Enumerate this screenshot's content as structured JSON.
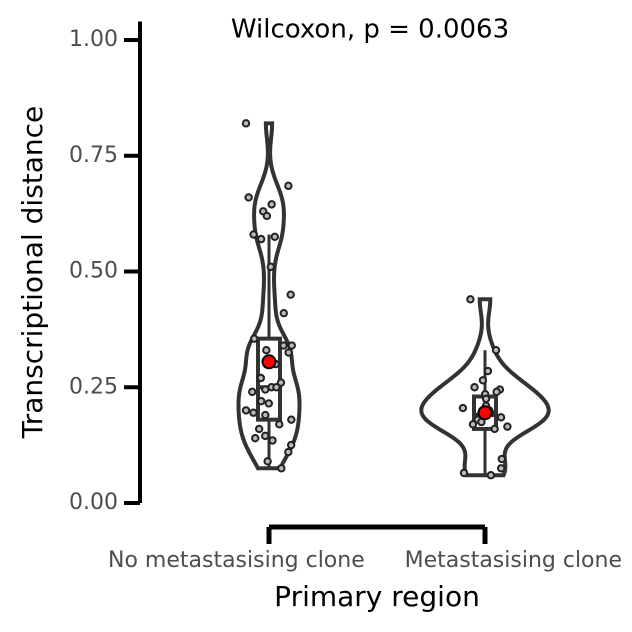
{
  "chart_data": {
    "type": "violin",
    "annotation": "Wilcoxon, p = 0.0063",
    "x_label": "Primary region",
    "y_label": "Transcriptional distance",
    "categories": [
      "No metastasising clone",
      "Metastasising clone"
    ],
    "ylim": [
      0,
      1.04
    ],
    "yticks": [
      {
        "value": 0,
        "label": "0.00"
      },
      {
        "value": 0.25,
        "label": "0.25"
      },
      {
        "value": 0.5,
        "label": "0.50"
      },
      {
        "value": 0.75,
        "label": "0.75"
      },
      {
        "value": 1,
        "label": "1.00"
      }
    ],
    "point_color": "#222222",
    "mean_color": "#ff0000",
    "groups": [
      {
        "values": [
          0.82,
          0.685,
          0.66,
          0.645,
          0.63,
          0.62,
          0.575,
          0.58,
          0.57,
          0.51,
          0.45,
          0.41,
          0.355,
          0.34,
          0.34,
          0.33,
          0.325,
          0.305,
          0.3,
          0.27,
          0.26,
          0.25,
          0.25,
          0.245,
          0.24,
          0.22,
          0.215,
          0.2,
          0.195,
          0.19,
          0.18,
          0.17,
          0.16,
          0.145,
          0.14,
          0.135,
          0.125,
          0.11,
          0.09,
          0.075
        ],
        "box": {
          "whisker_low": 0.075,
          "q1": 0.18,
          "median": 0.25,
          "q3": 0.355,
          "whisker_high": 0.58
        },
        "mean": 0.305
      },
      {
        "values": [
          0.44,
          0.33,
          0.285,
          0.265,
          0.25,
          0.245,
          0.24,
          0.235,
          0.225,
          0.21,
          0.205,
          0.2,
          0.195,
          0.19,
          0.185,
          0.18,
          0.175,
          0.17,
          0.165,
          0.16,
          0.095,
          0.075,
          0.065,
          0.06
        ],
        "box": {
          "whisker_low": 0.06,
          "q1": 0.16,
          "median": 0.19,
          "q3": 0.23,
          "whisker_high": 0.33
        },
        "mean": 0.195
      }
    ]
  }
}
